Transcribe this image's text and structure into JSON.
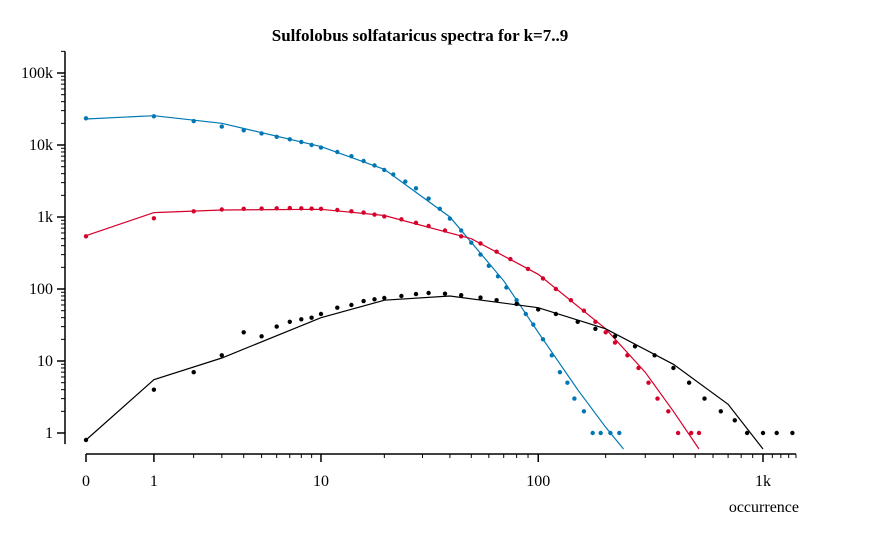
{
  "chart_data": {
    "type": "scatter",
    "title": "Sulfolobus solfataricus spectra for k=7..9",
    "xlabel": "occurrence",
    "ylabel": "",
    "x_scale": "log (x+1)",
    "y_scale": "log",
    "xlim": [
      0,
      1400
    ],
    "ylim": [
      0.7,
      200000
    ],
    "grid": false,
    "x_ticks": [
      {
        "value": 0,
        "label": "0"
      },
      {
        "value": 1,
        "label": "1"
      },
      {
        "value": 10,
        "label": "10"
      },
      {
        "value": 100,
        "label": "100"
      },
      {
        "value": 1000,
        "label": "1k"
      }
    ],
    "y_ticks": [
      {
        "value": 1,
        "label": "1"
      },
      {
        "value": 10,
        "label": "10"
      },
      {
        "value": 100,
        "label": "100"
      },
      {
        "value": 1000,
        "label": "1k"
      },
      {
        "value": 10000,
        "label": "10k"
      },
      {
        "value": 100000,
        "label": "100k"
      }
    ],
    "series": [
      {
        "color": "#0077b3",
        "points": [
          [
            0,
            23500
          ],
          [
            1,
            25000
          ],
          [
            2,
            21500
          ],
          [
            3,
            18000
          ],
          [
            4,
            16000
          ],
          [
            5,
            14500
          ],
          [
            6,
            13000
          ],
          [
            7,
            12000
          ],
          [
            8,
            11000
          ],
          [
            9,
            10000
          ],
          [
            10,
            9200
          ],
          [
            12,
            8000
          ],
          [
            14,
            7000
          ],
          [
            16,
            6000
          ],
          [
            18,
            5200
          ],
          [
            20,
            4500
          ],
          [
            22,
            3900
          ],
          [
            25,
            3100
          ],
          [
            28,
            2500
          ],
          [
            32,
            1800
          ],
          [
            36,
            1300
          ],
          [
            40,
            950
          ],
          [
            45,
            650
          ],
          [
            50,
            440
          ],
          [
            55,
            300
          ],
          [
            60,
            210
          ],
          [
            66,
            150
          ],
          [
            72,
            105
          ],
          [
            80,
            70
          ],
          [
            88,
            45
          ],
          [
            95,
            32
          ],
          [
            105,
            20
          ],
          [
            115,
            12
          ],
          [
            125,
            7
          ],
          [
            135,
            5
          ],
          [
            145,
            3
          ],
          [
            160,
            2
          ],
          [
            175,
            1
          ],
          [
            190,
            1
          ],
          [
            210,
            1
          ],
          [
            230,
            1
          ]
        ],
        "fit": [
          [
            0,
            23000
          ],
          [
            1,
            25500
          ],
          [
            3,
            20000
          ],
          [
            10,
            9500
          ],
          [
            20,
            4600
          ],
          [
            40,
            1000
          ],
          [
            70,
            130
          ],
          [
            100,
            25
          ],
          [
            150,
            4
          ],
          [
            200,
            1.2
          ],
          [
            240,
            0.6
          ]
        ]
      },
      {
        "color": "#d6002a",
        "points": [
          [
            0,
            540
          ],
          [
            1,
            960
          ],
          [
            2,
            1200
          ],
          [
            3,
            1270
          ],
          [
            4,
            1300
          ],
          [
            5,
            1310
          ],
          [
            6,
            1320
          ],
          [
            7,
            1330
          ],
          [
            8,
            1320
          ],
          [
            9,
            1310
          ],
          [
            10,
            1300
          ],
          [
            12,
            1250
          ],
          [
            14,
            1200
          ],
          [
            16,
            1150
          ],
          [
            18,
            1080
          ],
          [
            20,
            1020
          ],
          [
            24,
            930
          ],
          [
            28,
            830
          ],
          [
            32,
            750
          ],
          [
            38,
            650
          ],
          [
            45,
            540
          ],
          [
            55,
            430
          ],
          [
            65,
            330
          ],
          [
            75,
            260
          ],
          [
            90,
            190
          ],
          [
            105,
            140
          ],
          [
            120,
            100
          ],
          [
            140,
            70
          ],
          [
            160,
            50
          ],
          [
            180,
            35
          ],
          [
            200,
            25
          ],
          [
            220,
            18
          ],
          [
            250,
            12
          ],
          [
            280,
            8
          ],
          [
            310,
            5
          ],
          [
            340,
            3
          ],
          [
            380,
            2
          ],
          [
            420,
            1
          ],
          [
            480,
            1
          ],
          [
            520,
            1
          ]
        ],
        "fit": [
          [
            0,
            550
          ],
          [
            1,
            1150
          ],
          [
            3,
            1250
          ],
          [
            10,
            1280
          ],
          [
            20,
            1050
          ],
          [
            50,
            500
          ],
          [
            100,
            160
          ],
          [
            200,
            28
          ],
          [
            300,
            7
          ],
          [
            400,
            2
          ],
          [
            520,
            0.6
          ]
        ]
      },
      {
        "color": "#000000",
        "points": [
          [
            0,
            0.8
          ],
          [
            1,
            4
          ],
          [
            2,
            7
          ],
          [
            3,
            12
          ],
          [
            4,
            25
          ],
          [
            5,
            22
          ],
          [
            6,
            30
          ],
          [
            7,
            35
          ],
          [
            8,
            38
          ],
          [
            9,
            40
          ],
          [
            10,
            45
          ],
          [
            12,
            55
          ],
          [
            14,
            60
          ],
          [
            16,
            68
          ],
          [
            18,
            72
          ],
          [
            20,
            75
          ],
          [
            24,
            80
          ],
          [
            28,
            85
          ],
          [
            32,
            88
          ],
          [
            38,
            86
          ],
          [
            45,
            82
          ],
          [
            55,
            76
          ],
          [
            65,
            70
          ],
          [
            80,
            62
          ],
          [
            100,
            52
          ],
          [
            120,
            45
          ],
          [
            150,
            35
          ],
          [
            180,
            28
          ],
          [
            220,
            22
          ],
          [
            270,
            16
          ],
          [
            330,
            12
          ],
          [
            400,
            8
          ],
          [
            470,
            5
          ],
          [
            550,
            3
          ],
          [
            650,
            2
          ],
          [
            750,
            1.5
          ],
          [
            850,
            1
          ],
          [
            1000,
            1
          ],
          [
            1150,
            1
          ],
          [
            1350,
            1
          ]
        ],
        "fit": [
          [
            0,
            0.8
          ],
          [
            1,
            5.5
          ],
          [
            3,
            11
          ],
          [
            10,
            40
          ],
          [
            20,
            70
          ],
          [
            40,
            80
          ],
          [
            100,
            55
          ],
          [
            200,
            28
          ],
          [
            400,
            9
          ],
          [
            700,
            2.5
          ],
          [
            1000,
            0.6
          ]
        ]
      }
    ]
  }
}
